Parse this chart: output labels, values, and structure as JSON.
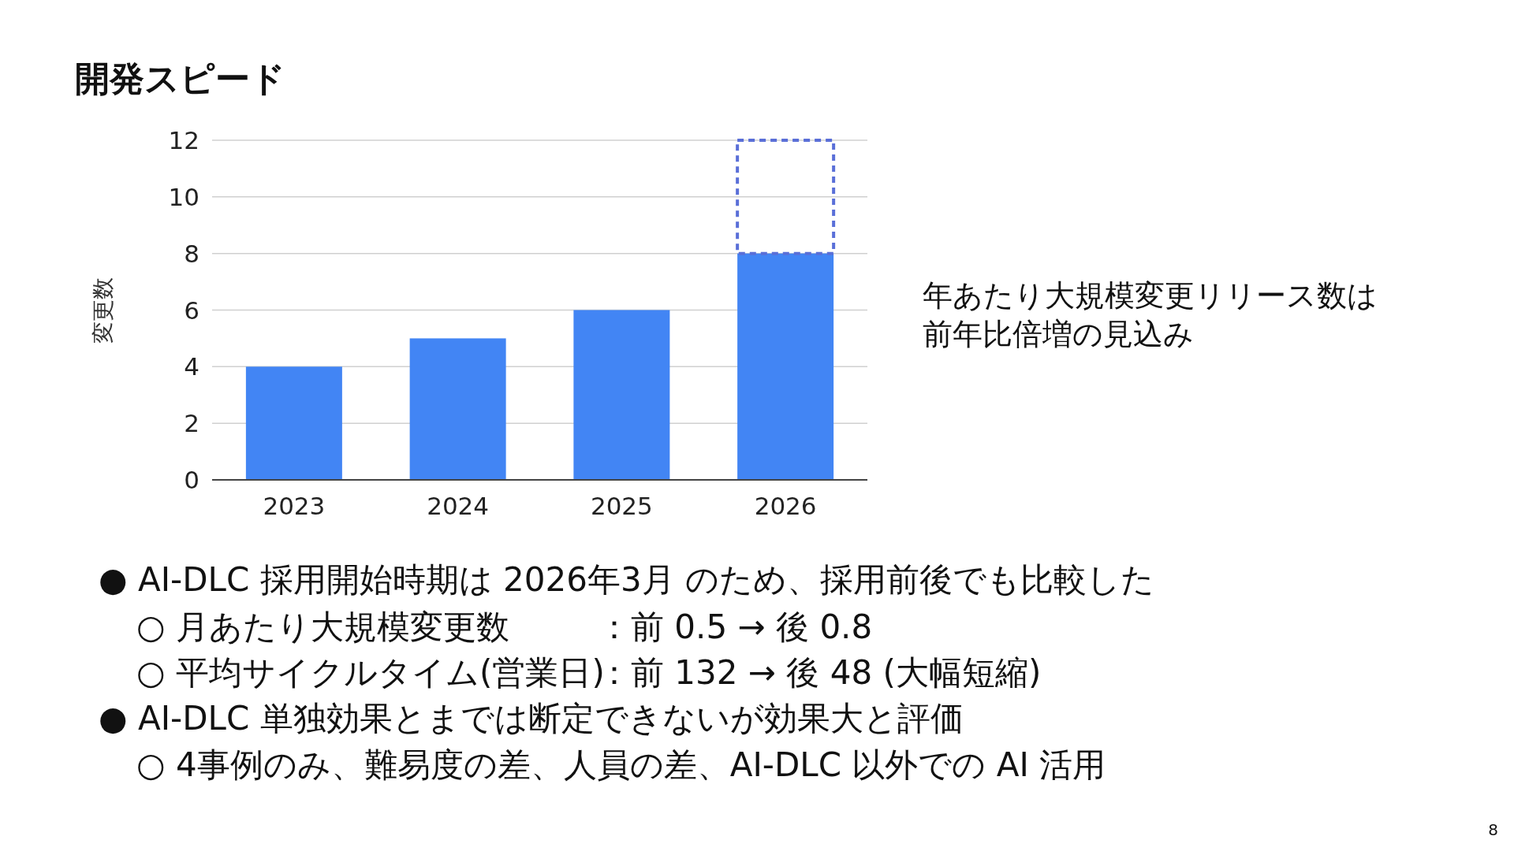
{
  "chart_data": {
    "type": "bar",
    "title": "開発スピード",
    "ylabel": "変更数",
    "categories": [
      "2023",
      "2024",
      "2025",
      "2026"
    ],
    "stacked": true,
    "series": [
      {
        "color": "#4285f4",
        "values": [
          4,
          5,
          6,
          8
        ]
      },
      {
        "color": "#5a6fd8",
        "values": [
          null,
          null,
          null,
          4
        ],
        "line_style": "dashed"
      }
    ],
    "ylim": [
      0,
      12
    ],
    "yticks": [
      0,
      2,
      4,
      6,
      8,
      10,
      12
    ],
    "grid": "y",
    "annotations": [
      "年あたり大規模変更リリース数は",
      "前年比倍増の見込み",
      "● AI-DLC 採用開始時期は 2026年3月 のため、採用前後でも比較した",
      "○ 月あたり大規模変更数",
      "：前 0.5 → 後 0.8",
      "○ 平均サイクルタイム(営業日)",
      "：前 132 → 後 48 (大幅短縮)",
      "● AI-DLC 単独効果とまでは断定できないが効果大と評価",
      "○ 4事例のみ、難易度の差、人員の差、AI-DLC 以外での AI 活用",
      "8"
    ]
  }
}
